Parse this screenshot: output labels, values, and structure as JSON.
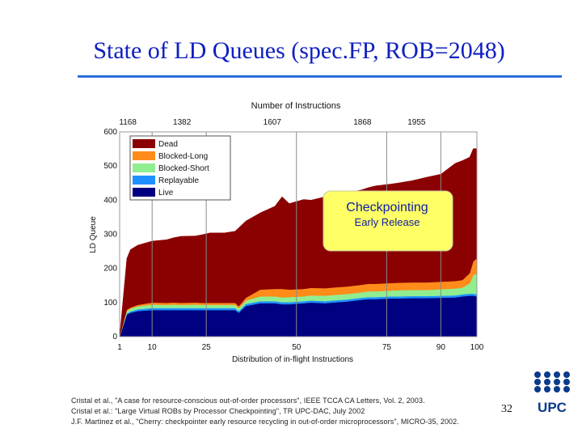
{
  "slide": {
    "title": "State of LD Queues (spec.FP, ROB=2048)",
    "page_number": "32",
    "logo_text": "UPC"
  },
  "citations": [
    "Cristal et al., \"A case for resource-conscious out-of-order processors\", IEEE TCCA CA Letters, Vol. 2, 2003.",
    "Cristal et al.: \"Large Virtual ROBs by Processor Checkpointing\", TR UPC-DAC, July 2002",
    "J.F. Martinez et al., \"Cherry: checkpointer early resource recycling in out-of-order microprocessors\", MICRO-35, 2002."
  ],
  "colors": {
    "dead": "#8b0000",
    "blocked_long": "#ff8c1a",
    "blocked_short": "#90ee90",
    "replayable": "#1e90ff",
    "live": "#000080",
    "callout_bg": "#ffff66",
    "title": "#1020c0",
    "rule": "#2b6fd6"
  },
  "chart_data": {
    "type": "area",
    "stacked": true,
    "top_axis_label": "Number of Instructions",
    "top_ticks": [
      {
        "at": 10,
        "label": "1168"
      },
      {
        "at": 25,
        "label": "1382"
      },
      {
        "at": 50,
        "label": "1607"
      },
      {
        "at": 75,
        "label": "1868"
      },
      {
        "at": 90,
        "label": "1955"
      }
    ],
    "xlabel": "Distribution of in-flight Instructions",
    "ylabel": "LD Queue",
    "x_ticks": [
      {
        "at": 1,
        "label": "1"
      },
      {
        "at": 10,
        "label": "10"
      },
      {
        "at": 25,
        "label": "25"
      },
      {
        "at": 50,
        "label": "50"
      },
      {
        "at": 75,
        "label": "75"
      },
      {
        "at": 90,
        "label": "90"
      },
      {
        "at": 100,
        "label": "100"
      }
    ],
    "y_ticks": [
      0,
      100,
      200,
      300,
      400,
      500,
      600
    ],
    "ylim": [
      0,
      600
    ],
    "x": [
      1,
      3,
      4,
      6,
      10,
      14,
      16,
      18,
      22,
      24,
      26,
      30,
      33,
      34,
      36,
      40,
      44,
      46,
      48,
      52,
      54,
      58,
      60,
      64,
      68,
      70,
      72,
      76,
      78,
      82,
      86,
      90,
      94,
      96,
      98,
      99,
      100
    ],
    "series": [
      {
        "name": "Live",
        "values": [
          0,
          65,
          70,
          75,
          78,
          78,
          78,
          78,
          78,
          78,
          78,
          78,
          78,
          70,
          90,
          98,
          98,
          95,
          95,
          98,
          100,
          98,
          100,
          103,
          108,
          110,
          110,
          112,
          112,
          113,
          113,
          114,
          115,
          118,
          120,
          120,
          118
        ]
      },
      {
        "name": "Replayable",
        "values": [
          0,
          3,
          4,
          5,
          6,
          6,
          6,
          6,
          6,
          6,
          6,
          6,
          6,
          5,
          6,
          6,
          6,
          6,
          6,
          6,
          6,
          6,
          6,
          6,
          6,
          6,
          6,
          6,
          6,
          6,
          6,
          6,
          6,
          6,
          6,
          6,
          6
        ]
      },
      {
        "name": "Blocked-Short",
        "values": [
          0,
          8,
          8,
          9,
          10,
          9,
          10,
          9,
          10,
          9,
          9,
          9,
          9,
          8,
          10,
          14,
          14,
          14,
          15,
          14,
          15,
          16,
          16,
          16,
          16,
          17,
          17,
          17,
          18,
          18,
          18,
          19,
          20,
          20,
          30,
          55,
          60
        ]
      },
      {
        "name": "Blocked-Long",
        "values": [
          0,
          3,
          3,
          4,
          6,
          6,
          6,
          6,
          6,
          6,
          6,
          6,
          6,
          6,
          8,
          20,
          22,
          25,
          22,
          22,
          22,
          22,
          22,
          22,
          22,
          22,
          22,
          22,
          22,
          22,
          22,
          22,
          22,
          22,
          30,
          40,
          45
        ]
      },
      {
        "name": "Dead",
        "values": [
          0,
          150,
          170,
          175,
          180,
          185,
          190,
          195,
          195,
          200,
          205,
          205,
          210,
          230,
          225,
          225,
          242,
          270,
          252,
          262,
          257,
          268,
          272,
          275,
          278,
          282,
          287,
          290,
          292,
          298,
          308,
          315,
          345,
          350,
          340,
          330,
          322
        ]
      }
    ],
    "legend": {
      "placement": "top-left",
      "order": [
        "Dead",
        "Blocked-Long",
        "Blocked-Short",
        "Replayable",
        "Live"
      ],
      "labels": [
        "Dead",
        "Blocked-Long",
        "Blocked-Short",
        "Replayable",
        "Live"
      ]
    },
    "annotation": {
      "line1": "Checkpointing",
      "line2": "Early Release",
      "placement": "right-middle"
    },
    "grid": "vertical lines at top ticks"
  }
}
